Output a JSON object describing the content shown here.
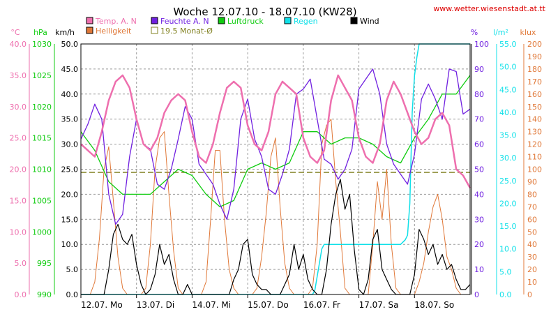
{
  "page": {
    "title": "Woche 12.07.10 - 18.07.10 (KW28)",
    "source": "www.wetter.wiesenstadt.at.tt"
  },
  "colors": {
    "temp": "#ee6fae",
    "humidity": "#7020e0",
    "pressure": "#10cc10",
    "rain": "#10e0e8",
    "wind": "#000000",
    "brightness": "#e07838",
    "monthly_avg": "#808020",
    "grid": "#999999",
    "title_red": "#dd0000"
  },
  "chart_data": {
    "type": "line",
    "title": "Woche 12.07.10 - 18.07.10 (KW28)",
    "x_range": [
      "12.07.2010 00:00",
      "19.07.2010 00:00"
    ],
    "x_ticks": [
      "12.07. Mo",
      "13.07. Di",
      "14.07. Mi",
      "15.07. Do",
      "16.07. Fr",
      "17.07. Sa",
      "18.07. So"
    ],
    "grid": true,
    "axes": {
      "temp": {
        "unit": "°C",
        "min": 0,
        "max": 40,
        "ticks": [
          "0.0",
          "5.0",
          "10.0",
          "15.0",
          "20.0",
          "25.0",
          "30.0",
          "35.0",
          "40.0"
        ]
      },
      "pressure": {
        "unit": "hPa",
        "min": 990,
        "max": 1030,
        "ticks": [
          "990",
          "995",
          "1000",
          "1005",
          "1010",
          "1015",
          "1020",
          "1025",
          "1030"
        ]
      },
      "wind": {
        "unit": "km/h",
        "min": 0,
        "max": 50,
        "ticks": [
          "0.0",
          "5.0",
          "10.0",
          "15.0",
          "20.0",
          "25.0",
          "30.0",
          "35.0",
          "40.0",
          "45.0",
          "50.0"
        ]
      },
      "humidity": {
        "unit": "%",
        "min": 0,
        "max": 100,
        "ticks": [
          "0",
          "10",
          "20",
          "30",
          "40",
          "50",
          "60",
          "70",
          "80",
          "90",
          "100"
        ]
      },
      "rain": {
        "unit": "l/m²",
        "min": 0,
        "max": 55,
        "ticks": [
          "0.0",
          "5.0",
          "10.0",
          "15.0",
          "20.0",
          "25.0",
          "30.0",
          "35.0",
          "40.0",
          "45.0",
          "50.0",
          "55.0"
        ]
      },
      "brightness": {
        "unit": "klux",
        "min": 0,
        "max": 200,
        "ticks": [
          "0",
          "10",
          "20",
          "30",
          "40",
          "50",
          "60",
          "70",
          "80",
          "90",
          "100",
          "110",
          "120",
          "130",
          "140",
          "150",
          "160",
          "170",
          "180",
          "190",
          "200"
        ]
      }
    },
    "legend": [
      {
        "label": "Temp. A. N",
        "swatch": "temp"
      },
      {
        "label": "Feuchte A. N",
        "swatch": "humidity"
      },
      {
        "label": "Luftdruck",
        "swatch": "pressure"
      },
      {
        "label": "Regen",
        "swatch": "rain"
      },
      {
        "label": "Wind",
        "swatch": "wind"
      },
      {
        "label": "Helligkeit",
        "swatch": "brightness"
      },
      {
        "label": "19.5 Monat-Ø",
        "swatch": "monthly_avg"
      }
    ],
    "monthly_avg_temp": 19.5,
    "series": [
      {
        "name": "Temp. A. N",
        "axis": "temp",
        "x": [
          0,
          3,
          6,
          9,
          12,
          15,
          18,
          21,
          24,
          27,
          30,
          33,
          36,
          39,
          42,
          45,
          48,
          51,
          54,
          57,
          60,
          63,
          66,
          69,
          72,
          75,
          78,
          81,
          84,
          87,
          90,
          93,
          96,
          99,
          102,
          105,
          108,
          111,
          114,
          117,
          120,
          123,
          126,
          129,
          132,
          135,
          138,
          141,
          144,
          147,
          150,
          153,
          156,
          159,
          162,
          165,
          168
        ],
        "y": [
          24,
          23,
          22,
          26,
          31,
          34,
          35,
          33,
          28,
          24,
          23,
          25,
          29,
          31,
          32,
          31,
          26,
          22,
          21,
          24,
          29,
          33,
          34,
          33,
          27,
          24,
          23,
          26,
          32,
          34,
          33,
          32,
          25,
          22,
          21,
          23,
          31,
          35,
          33,
          31,
          25,
          22,
          21,
          24,
          31,
          34,
          32,
          29,
          26,
          24,
          25,
          28,
          29,
          27,
          20,
          19,
          17
        ]
      },
      {
        "name": "Feuchte A. N",
        "axis": "humidity",
        "x": [
          0,
          3,
          6,
          9,
          12,
          15,
          18,
          21,
          24,
          27,
          30,
          33,
          36,
          39,
          42,
          45,
          48,
          51,
          54,
          57,
          60,
          63,
          66,
          69,
          72,
          75,
          78,
          81,
          84,
          87,
          90,
          93,
          96,
          99,
          102,
          105,
          108,
          111,
          114,
          117,
          120,
          123,
          126,
          129,
          132,
          135,
          138,
          141,
          144,
          147,
          150,
          153,
          156,
          159,
          162,
          165,
          168
        ],
        "y": [
          62,
          68,
          76,
          70,
          40,
          28,
          32,
          55,
          70,
          60,
          58,
          44,
          42,
          50,
          62,
          75,
          70,
          52,
          48,
          44,
          36,
          30,
          42,
          70,
          78,
          62,
          55,
          42,
          40,
          48,
          58,
          80,
          82,
          86,
          70,
          54,
          52,
          46,
          50,
          58,
          82,
          86,
          90,
          80,
          60,
          52,
          48,
          44,
          56,
          78,
          84,
          78,
          70,
          90,
          89,
          72,
          74
        ]
      },
      {
        "name": "Luftdruck",
        "axis": "pressure",
        "x": [
          0,
          6,
          12,
          18,
          24,
          30,
          36,
          42,
          48,
          54,
          60,
          66,
          72,
          78,
          84,
          90,
          96,
          102,
          108,
          114,
          120,
          126,
          132,
          138,
          144,
          150,
          156,
          162,
          168
        ],
        "y": [
          1016,
          1013,
          1008,
          1006,
          1006,
          1006,
          1008,
          1010,
          1009,
          1006,
          1004,
          1005,
          1010,
          1011,
          1010,
          1011,
          1016,
          1016,
          1014,
          1015,
          1015,
          1014,
          1012,
          1011,
          1015,
          1018,
          1022,
          1022,
          1025
        ]
      },
      {
        "name": "Regen",
        "axis": "rain",
        "x": [
          0,
          100,
          101,
          102,
          103,
          104,
          105,
          108,
          112,
          120,
          126,
          130,
          134,
          138,
          140,
          141,
          142,
          143,
          144,
          145,
          146,
          160,
          168
        ],
        "y": [
          0,
          0,
          1,
          4,
          7,
          10,
          11,
          11,
          11,
          11,
          11,
          11,
          11,
          11,
          12,
          13,
          20,
          40,
          48,
          52,
          55,
          55,
          55
        ]
      },
      {
        "name": "Wind",
        "axis": "wind",
        "x": [
          0,
          2,
          4,
          6,
          8,
          10,
          12,
          14,
          16,
          18,
          20,
          22,
          24,
          26,
          28,
          30,
          32,
          34,
          36,
          38,
          40,
          42,
          44,
          46,
          48,
          50,
          52,
          54,
          56,
          58,
          60,
          62,
          64,
          66,
          68,
          70,
          72,
          74,
          76,
          78,
          80,
          82,
          84,
          86,
          88,
          90,
          92,
          94,
          96,
          98,
          100,
          102,
          104,
          106,
          108,
          110,
          112,
          114,
          116,
          118,
          120,
          122,
          124,
          126,
          128,
          130,
          132,
          134,
          136,
          138,
          140,
          142,
          144,
          146,
          148,
          150,
          152,
          154,
          156,
          158,
          160,
          162,
          164,
          166,
          168
        ],
        "y": [
          0,
          0,
          0,
          0,
          0,
          0,
          5,
          12,
          14,
          11,
          10,
          12,
          6,
          2,
          0,
          1,
          4,
          10,
          6,
          8,
          3,
          0,
          0,
          2,
          0,
          0,
          0,
          0,
          0,
          0,
          0,
          0,
          0,
          3,
          5,
          10,
          11,
          4,
          2,
          1,
          1,
          0,
          0,
          0,
          2,
          4,
          10,
          5,
          8,
          3,
          1,
          0,
          0,
          5,
          14,
          20,
          23,
          17,
          20,
          9,
          1,
          0,
          3,
          11,
          13,
          5,
          3,
          1,
          0,
          0,
          0,
          0,
          4,
          13,
          11,
          8,
          10,
          6,
          8,
          5,
          6,
          3,
          1,
          1,
          2
        ]
      },
      {
        "name": "Helligkeit",
        "axis": "brightness",
        "x": [
          0,
          2,
          4,
          6,
          8,
          10,
          12,
          14,
          16,
          18,
          20,
          22,
          24,
          26,
          28,
          30,
          32,
          34,
          36,
          38,
          40,
          42,
          44,
          46,
          48,
          50,
          52,
          54,
          56,
          58,
          60,
          62,
          64,
          66,
          68,
          70,
          72,
          74,
          76,
          78,
          80,
          82,
          84,
          86,
          88,
          90,
          92,
          94,
          96,
          98,
          100,
          102,
          104,
          106,
          108,
          110,
          112,
          114,
          116,
          118,
          120,
          122,
          124,
          126,
          128,
          130,
          132,
          134,
          136,
          138,
          140,
          142,
          144,
          146,
          148,
          150,
          152,
          154,
          156,
          158,
          160,
          162,
          164,
          166,
          168
        ],
        "y": [
          0,
          0,
          0,
          10,
          45,
          100,
          118,
          75,
          30,
          5,
          0,
          0,
          0,
          0,
          5,
          40,
          100,
          125,
          130,
          80,
          35,
          5,
          0,
          0,
          0,
          0,
          0,
          10,
          60,
          115,
          115,
          60,
          20,
          5,
          0,
          0,
          0,
          0,
          5,
          30,
          65,
          110,
          125,
          70,
          25,
          5,
          0,
          0,
          0,
          0,
          5,
          40,
          120,
          135,
          140,
          90,
          50,
          5,
          0,
          0,
          0,
          0,
          0,
          40,
          90,
          60,
          100,
          40,
          5,
          0,
          0,
          0,
          0,
          10,
          25,
          50,
          70,
          80,
          60,
          30,
          20,
          5,
          0,
          0,
          0
        ]
      }
    ]
  }
}
